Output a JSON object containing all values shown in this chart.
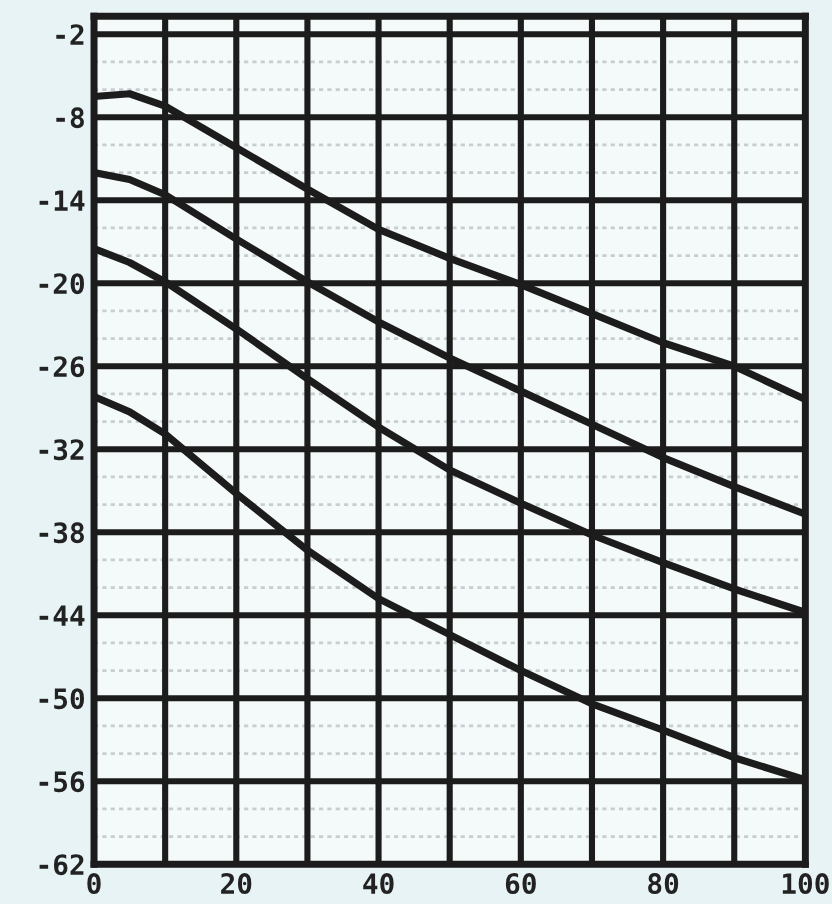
{
  "chart_data": {
    "type": "line",
    "x": [
      0,
      5,
      10,
      20,
      30,
      40,
      50,
      60,
      70,
      80,
      90,
      100
    ],
    "series": [
      {
        "color": "#1c1c1c",
        "values": [
          -6.5,
          -6.3,
          -7.2,
          -10.2,
          -13.2,
          -16.1,
          -18.2,
          -20.1,
          -22.2,
          -24.3,
          -26.0,
          -28.4
        ]
      },
      {
        "color": "#1c1c1c",
        "values": [
          -12.0,
          -12.5,
          -13.6,
          -16.8,
          -19.9,
          -22.8,
          -25.4,
          -27.8,
          -30.2,
          -32.6,
          -34.7,
          -36.7
        ]
      },
      {
        "color": "#1c1c1c",
        "values": [
          -17.5,
          -18.5,
          -19.9,
          -23.3,
          -26.9,
          -30.4,
          -33.5,
          -35.9,
          -38.2,
          -40.2,
          -42.1,
          -43.8
        ]
      },
      {
        "color": "#1c1c1c",
        "values": [
          -28.2,
          -29.3,
          -30.9,
          -35.2,
          -39.3,
          -42.8,
          -45.4,
          -48.0,
          -50.4,
          -52.3,
          -54.3,
          -55.9
        ]
      }
    ],
    "xlim": [
      0,
      100
    ],
    "ylim": [
      -62,
      -0.7
    ],
    "xticks": [
      0,
      {
        "value": 10,
        "label": null
      },
      20,
      {
        "value": 30,
        "label": null
      },
      40,
      {
        "value": 50,
        "label": null
      },
      60,
      {
        "value": 70,
        "label": null
      },
      80,
      {
        "value": 90,
        "label": null
      },
      100
    ],
    "yticks": [
      -62,
      {
        "value": -60,
        "label": null
      },
      {
        "value": -58,
        "label": null
      },
      -56,
      {
        "value": -54,
        "label": null
      },
      {
        "value": -52,
        "label": null
      },
      -50,
      {
        "value": -48,
        "label": null
      },
      {
        "value": -46,
        "label": null
      },
      -44,
      {
        "value": -42,
        "label": null
      },
      {
        "value": -40,
        "label": null
      },
      -38,
      {
        "value": -36,
        "label": null
      },
      {
        "value": -34,
        "label": null
      },
      -32,
      {
        "value": -30,
        "label": null
      },
      {
        "value": -28,
        "label": null
      },
      -26,
      {
        "value": -24,
        "label": null
      },
      {
        "value": -22,
        "label": null
      },
      -20,
      {
        "value": -18,
        "label": null
      },
      {
        "value": -16,
        "label": null
      },
      -14,
      {
        "value": -12,
        "label": null
      },
      {
        "value": -10,
        "label": null
      },
      -8,
      {
        "value": -6,
        "label": null
      },
      {
        "value": -4,
        "label": null
      },
      -2
    ],
    "grid": true,
    "marker": "none",
    "line_style": "solid"
  }
}
